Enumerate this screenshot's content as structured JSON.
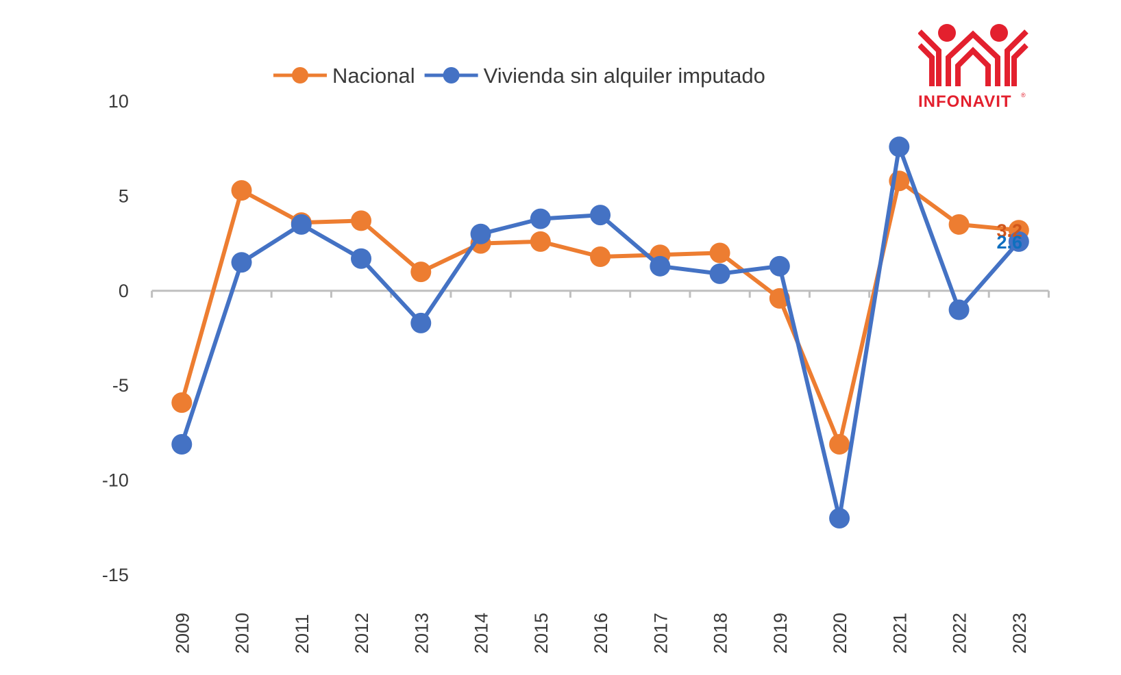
{
  "chart_data": {
    "type": "line",
    "title": "",
    "xlabel": "",
    "ylabel": "",
    "categories": [
      "2009",
      "2010",
      "2011",
      "2012",
      "2013",
      "2014",
      "2015",
      "2016",
      "2017",
      "2018",
      "2019",
      "2020",
      "2021",
      "2022",
      "2023"
    ],
    "ylim": [
      -15,
      10
    ],
    "yticks": [
      10,
      5,
      0,
      -5,
      -10,
      -15
    ],
    "ytick_labels": [
      "10",
      "5",
      "0",
      "-5",
      "-10",
      "-15"
    ],
    "grid": false,
    "legend_position": "top-center",
    "series": [
      {
        "name": "Nacional",
        "color": "#ED7D31",
        "values": [
          -5.9,
          5.3,
          3.6,
          3.7,
          1.0,
          2.5,
          2.6,
          1.8,
          1.9,
          2.0,
          -0.4,
          -8.1,
          5.8,
          3.5,
          3.2
        ],
        "end_label": "3.2",
        "end_label_color": "#D0561B"
      },
      {
        "name": "Vivienda sin alquiler imputado",
        "color": "#4472C4",
        "values": [
          -8.1,
          1.5,
          3.5,
          1.7,
          -1.7,
          3.0,
          3.8,
          4.0,
          1.3,
          0.9,
          1.3,
          -12.0,
          7.6,
          -1.0,
          2.6
        ],
        "end_label": "2.6",
        "end_label_color": "#0F6FBF"
      }
    ]
  },
  "logo": {
    "text": "INFONAVIT",
    "registered_mark": "®",
    "color": "#E3202E"
  }
}
